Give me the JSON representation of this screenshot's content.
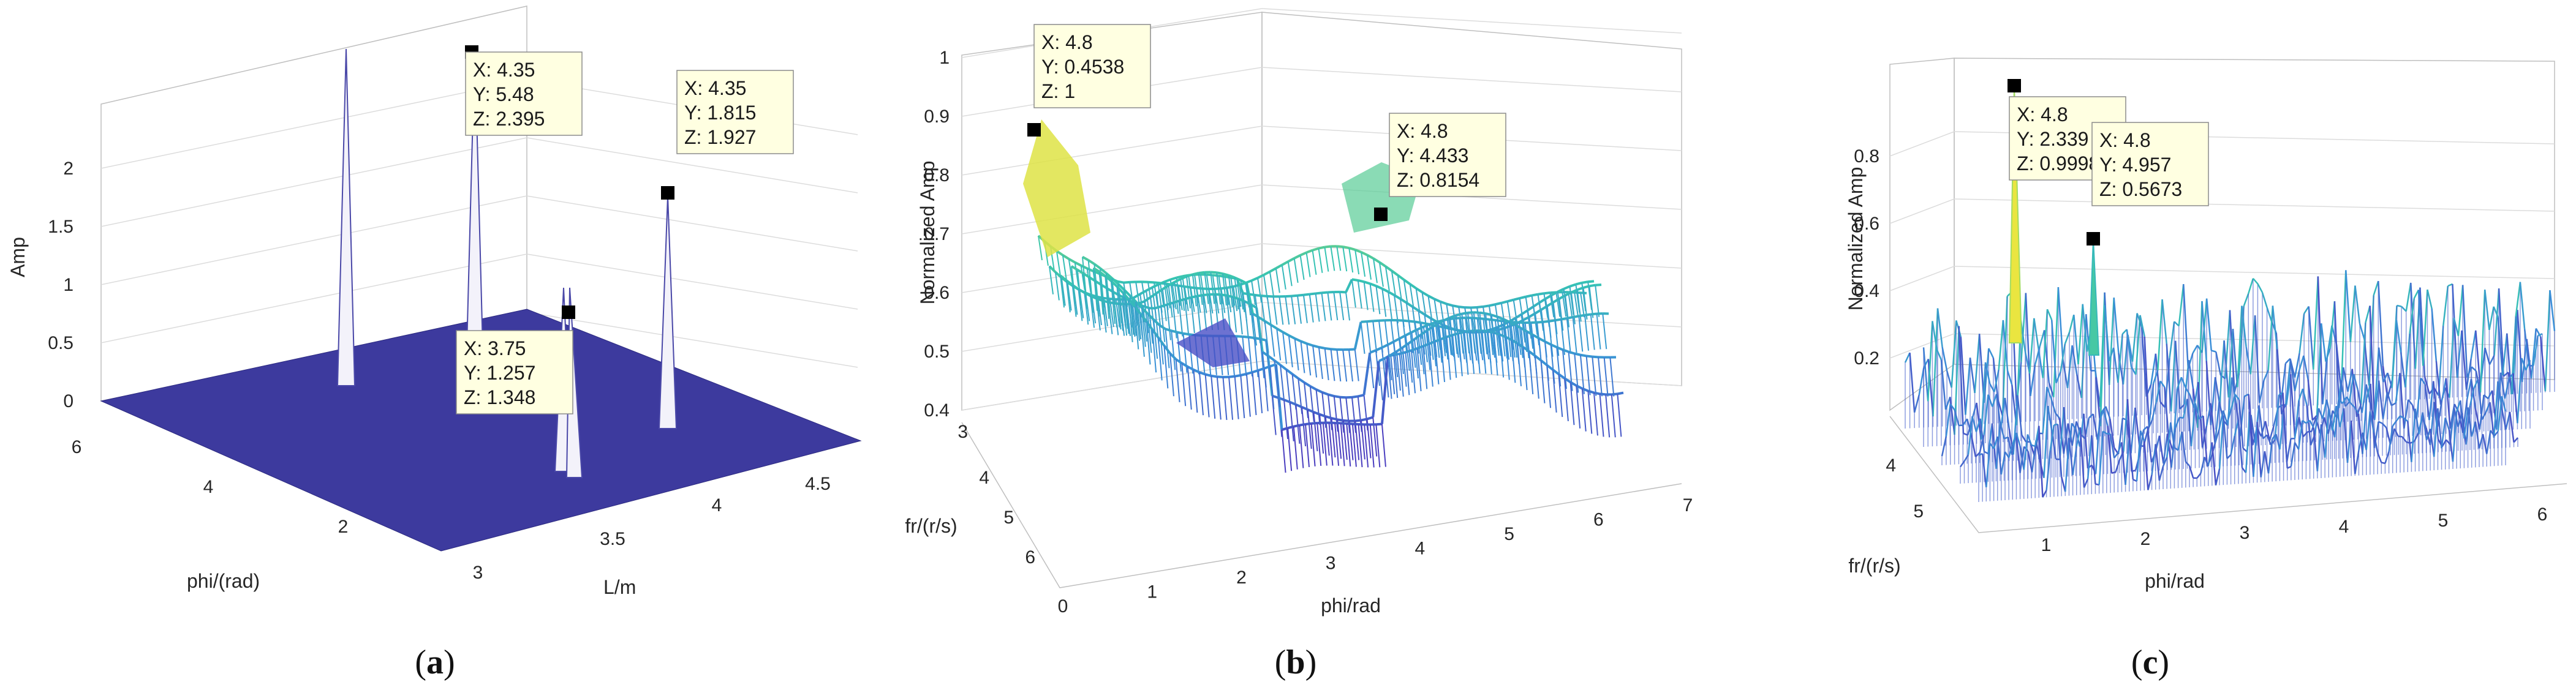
{
  "chart_data": [
    {
      "type": "surface3d",
      "panel": "a",
      "caption_letter": "a",
      "zlabel": "Amp",
      "xlabel": "L/m",
      "ylabel": "phi/(rad)",
      "zticks": [
        "0",
        "0.5",
        "1",
        "1.5",
        "2"
      ],
      "xticks": [
        "3",
        "3.5",
        "4",
        "4.5"
      ],
      "yticks": [
        "2",
        "4",
        "6"
      ],
      "surface_color": "#3d3a9e",
      "peaks": [
        {
          "x": 4.35,
          "y": 5.48,
          "z": 2.395
        },
        {
          "x": 4.35,
          "y": 1.815,
          "z": 1.927
        },
        {
          "x": 3.75,
          "y": 1.257,
          "z": 1.348
        }
      ],
      "datatips": [
        {
          "lines": [
            "X: 4.35",
            "Y: 5.48",
            "Z: 2.395"
          ]
        },
        {
          "lines": [
            "X: 4.35",
            "Y: 1.815",
            "Z: 1.927"
          ]
        },
        {
          "lines": [
            "X: 3.75",
            "Y: 1.257",
            "Z: 1.348"
          ]
        }
      ]
    },
    {
      "type": "mesh3d",
      "panel": "b",
      "caption_letter": "b",
      "zlabel": "Normalized Amp",
      "xlabel": "phi/rad",
      "ylabel": "fr/(r/s)",
      "zticks": [
        "0.4",
        "0.5",
        "0.6",
        "0.7",
        "0.8",
        "0.9",
        "1"
      ],
      "xticks": [
        "0",
        "1",
        "2",
        "3",
        "4",
        "5",
        "6",
        "7"
      ],
      "yticks": [
        "3",
        "4",
        "5",
        "6"
      ],
      "colormap": [
        "#4b3fc0",
        "#3a8fd8",
        "#35c4b3",
        "#8fd96a",
        "#f2e63c"
      ],
      "datatips": [
        {
          "lines": [
            "X: 4.8",
            "Y: 0.4538",
            "Z: 1"
          ]
        },
        {
          "lines": [
            "X: 4.8",
            "Y: 4.433",
            "Z: 0.8154"
          ]
        }
      ]
    },
    {
      "type": "mesh3d",
      "panel": "c",
      "caption_letter": "c",
      "zlabel": "Normalized Amp",
      "xlabel": "phi/rad",
      "ylabel": "fr/(r/s)",
      "zticks": [
        "0.2",
        "0.4",
        "0.6",
        "0.8"
      ],
      "xticks": [
        "1",
        "2",
        "3",
        "4",
        "5",
        "6"
      ],
      "yticks": [
        "4",
        "5"
      ],
      "colormap": [
        "#4b3fc0",
        "#3a8fd8",
        "#35c4b3",
        "#8fd96a",
        "#f2e63c"
      ],
      "datatips": [
        {
          "lines": [
            "X: 4.8",
            "Y: 2.339",
            "Z: 0.9998"
          ]
        },
        {
          "lines": [
            "X: 4.8",
            "Y: 4.957",
            "Z: 0.5673"
          ]
        }
      ]
    }
  ]
}
